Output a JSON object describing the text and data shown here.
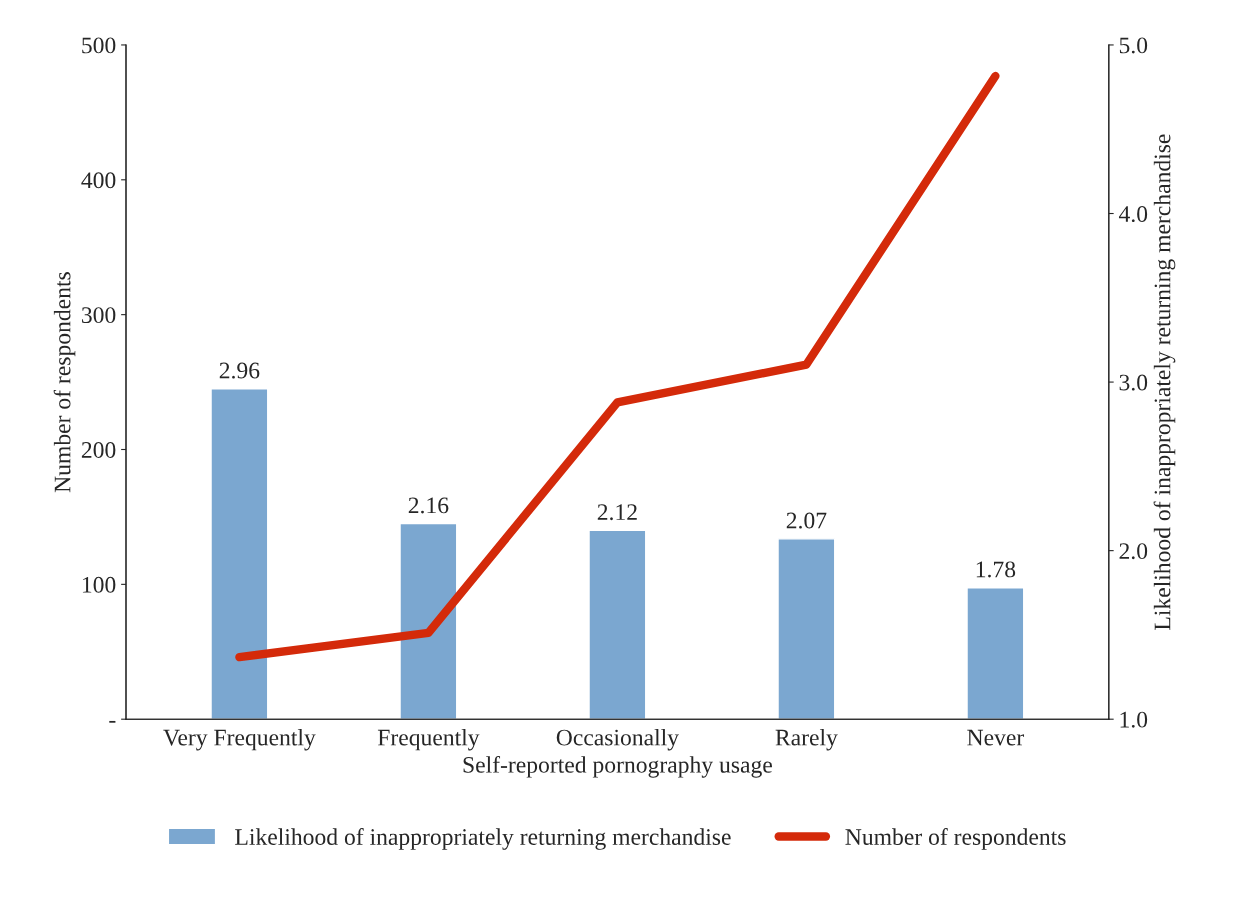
{
  "chart_data": {
    "type": "bar",
    "xlabel": "Self-reported pornography usage",
    "ylabel": "Number of respondents",
    "y2label": "Likelihood of inappropriately returning merchandise",
    "categories": [
      "Very Frequently",
      "Frequently",
      "Occasionally",
      "Rarely",
      "Never"
    ],
    "series": [
      {
        "name": "Likelihood of inappropriately returning merchandise",
        "axis": "y2",
        "color": "#7ba7d0",
        "values": [
          2.96,
          2.16,
          2.12,
          2.07,
          1.78
        ],
        "value_labels": [
          "2.96",
          "2.16",
          "2.12",
          "2.07",
          "1.78"
        ]
      },
      {
        "name": "Number of respondents",
        "type": "line",
        "color": "#d42a0a",
        "values": [
          46,
          64,
          235,
          263,
          477
        ]
      }
    ],
    "ylim": [
      0,
      500
    ],
    "yticks": [
      {
        "value": 0,
        "label": "-"
      },
      100,
      200,
      300,
      400,
      500
    ],
    "y2lim": [
      1.0,
      5.0
    ],
    "y2ticks": [
      {
        "value": 1.0,
        "label": "1.0"
      },
      {
        "value": 2.0,
        "label": "2.0"
      },
      {
        "value": 3.0,
        "label": "3.0"
      },
      {
        "value": 4.0,
        "label": "4.0"
      },
      {
        "value": 5.0,
        "label": "5.0"
      }
    ],
    "grid": false,
    "legend": "bottom",
    "marker": "none",
    "line_style": "solid"
  }
}
